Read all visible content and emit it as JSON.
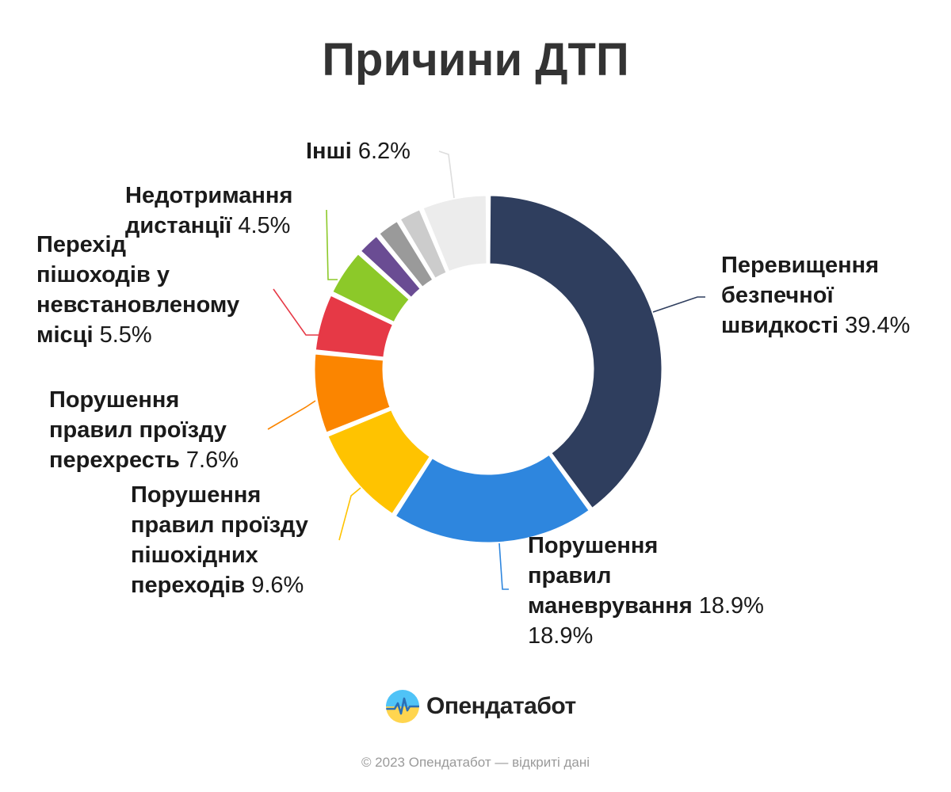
{
  "title": "Причини ДТП",
  "chart_data": {
    "type": "pie",
    "title": "Причини ДТП",
    "donut": true,
    "start_angle_deg": 0,
    "direction": "clockwise",
    "slices": [
      {
        "name": "Перевищення безпечної швидкості",
        "value": 39.4,
        "value_label": "39.4%",
        "color": "#2f3e5e",
        "label_lines": [
          "Перевищення",
          "безпечної",
          "швидкості"
        ]
      },
      {
        "name": "Порушення правил маневрування",
        "value": 18.9,
        "value_label": "18.9%",
        "color": "#2e86de",
        "label_lines": [
          "Порушення",
          "правил",
          "маневрування"
        ]
      },
      {
        "name": "Порушення правил проїзду пішохідних переходів",
        "value": 9.6,
        "value_label": "9.6%",
        "color": "#ffc300",
        "label_lines": [
          "Порушення",
          "правил проїзду",
          "пішохідних",
          "переходів"
        ]
      },
      {
        "name": "Порушення правил проїзду перехресть",
        "value": 7.6,
        "value_label": "7.6%",
        "color": "#fb8500",
        "label_lines": [
          "Порушення",
          "правил проїзду",
          "перехресть"
        ]
      },
      {
        "name": "Перехід пішоходів у невстановленому місці",
        "value": 5.5,
        "value_label": "5.5%",
        "color": "#e63946",
        "label_lines": [
          "Перехід",
          "пішоходів у",
          "невстановленому",
          "місці"
        ]
      },
      {
        "name": "Недотримання дистанції",
        "value": 4.5,
        "value_label": "4.5%",
        "color": "#8cc929",
        "label_lines": [
          "Недотримання",
          "дистанції"
        ]
      },
      {
        "name": "",
        "value": 2.3,
        "value_label": "",
        "color": "#6a4c93",
        "label_lines": []
      },
      {
        "name": "",
        "value": 2.3,
        "value_label": "",
        "color": "#9a9a9a",
        "label_lines": []
      },
      {
        "name": "",
        "value": 2.3,
        "value_label": "",
        "color": "#cccccc",
        "label_lines": []
      },
      {
        "name": "Інші",
        "value": 6.2,
        "value_label": "6.2%",
        "color": "#ececec",
        "label_lines": [
          "Інші"
        ]
      }
    ]
  },
  "brand": {
    "name": "Опендатабот",
    "logo_colors": {
      "top": "#4fc3f7",
      "bottom": "#ffd54f",
      "wave": "#2b6fb5"
    }
  },
  "footer": "© 2023 Опендатабот — відкриті дані"
}
